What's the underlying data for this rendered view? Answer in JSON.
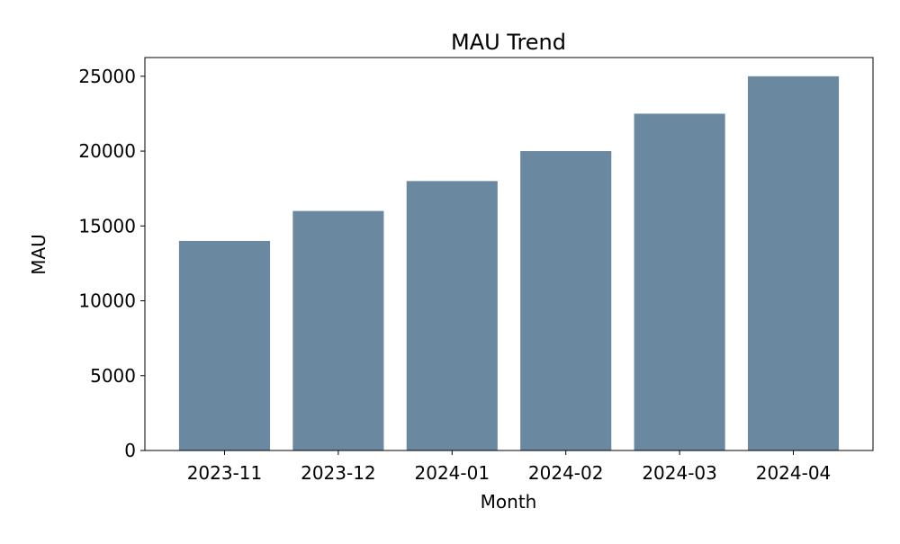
{
  "chart_data": {
    "type": "bar",
    "title": "MAU Trend",
    "xlabel": "Month",
    "ylabel": "MAU",
    "categories": [
      "2023-11",
      "2023-12",
      "2024-01",
      "2024-02",
      "2024-03",
      "2024-04"
    ],
    "values": [
      14000,
      16000,
      18000,
      20000,
      22500,
      25000
    ],
    "ylim": [
      0,
      26250
    ],
    "yticks": [
      0,
      5000,
      10000,
      15000,
      20000,
      25000
    ],
    "grid": false,
    "legend": "none",
    "bar_color": "#6a89a1"
  }
}
